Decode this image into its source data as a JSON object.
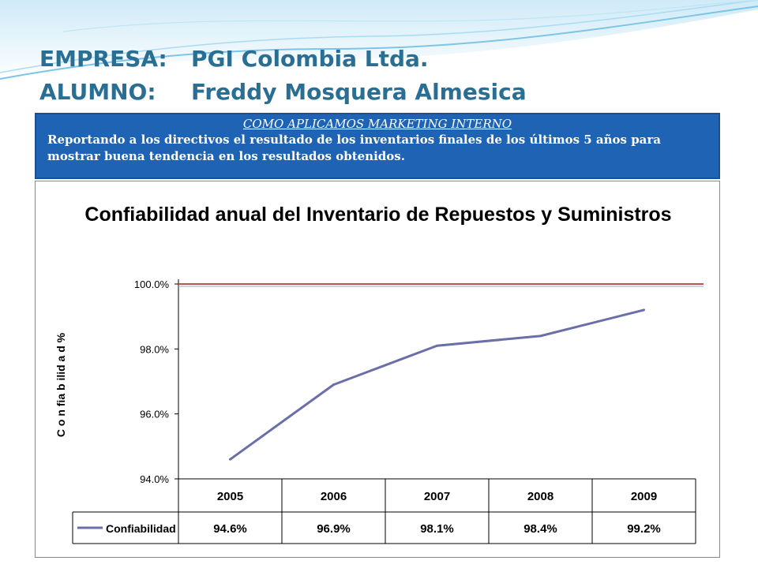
{
  "slide": {
    "title_line1_label": "EMPRESA:",
    "title_line1_value": "PGI Colombia Ltda.",
    "title_line2_label": "ALUMNO:",
    "title_line2_value": "Freddy Mosquera Almesica",
    "info_title": "COMO APLICAMOS MARKETING INTERNO",
    "info_text": "Reportando a los directivos el resultado de los inventarios finales de los últimos 5 años para mostrar  buena tendencia en los resultados obtenidos.",
    "title_color": "#2a6f93",
    "info_box_color": "#1f63b5"
  },
  "chart_data": {
    "type": "line",
    "title": "Confiabilidad anual del Inventario de Repuestos y Suministros",
    "xlabel": "",
    "ylabel": "C o n fia b ilid a d  %",
    "categories": [
      "2005",
      "2006",
      "2007",
      "2008",
      "2009"
    ],
    "series": [
      {
        "name": "Confiabilidad",
        "values": [
          0.946,
          0.969,
          0.981,
          0.984,
          0.992
        ],
        "value_labels": [
          "94.6%",
          "96.9%",
          "98.1%",
          "98.4%",
          "99.2%"
        ],
        "color": "#6a6fa8"
      }
    ],
    "target_line": {
      "value": 1.0,
      "color": "#c0504d"
    },
    "ylim": [
      0.94,
      1.0
    ],
    "yticks": [
      0.94,
      0.96,
      0.98,
      1.0
    ],
    "ytick_labels": [
      "94.0%",
      "96.0%",
      "98.0%",
      "100.0%"
    ],
    "grid": false,
    "legend": "data-table"
  }
}
